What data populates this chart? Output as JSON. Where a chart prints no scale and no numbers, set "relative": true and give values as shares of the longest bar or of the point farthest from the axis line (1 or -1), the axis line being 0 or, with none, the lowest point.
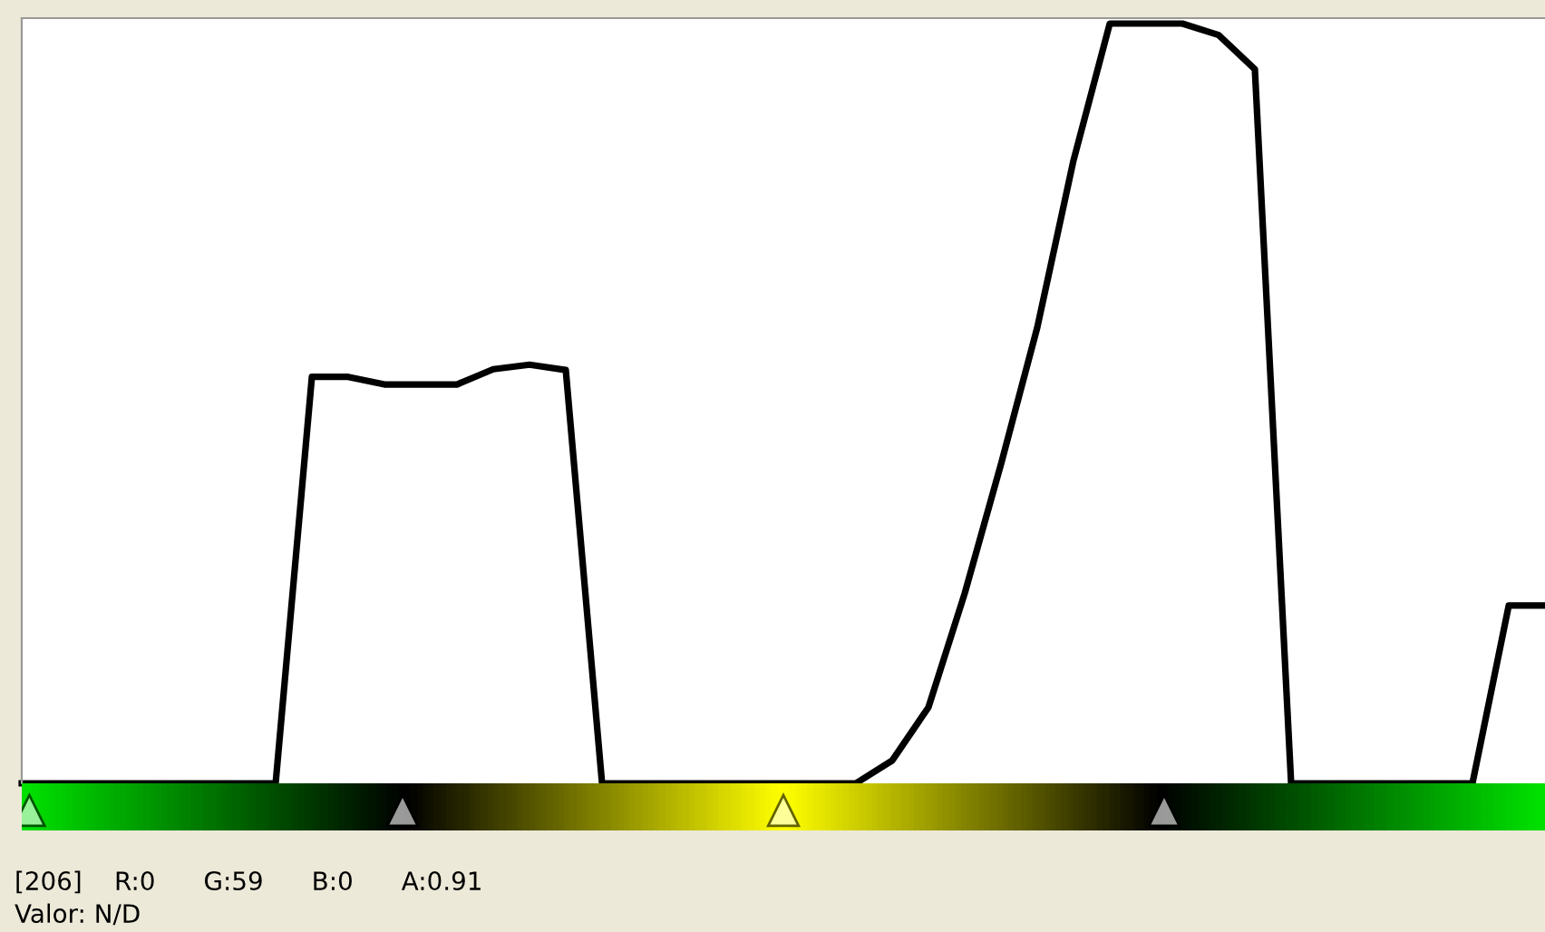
{
  "chart_data": {
    "type": "line",
    "relative": true,
    "categories": [
      null,
      null,
      null,
      null,
      null,
      null,
      null,
      null,
      null,
      null,
      null,
      null,
      null,
      null,
      null,
      null,
      null,
      null,
      null,
      null,
      null,
      null,
      null,
      null,
      null,
      null,
      null,
      null,
      null,
      null,
      null,
      null,
      null,
      null,
      null,
      null,
      null,
      null,
      null,
      null,
      null,
      null,
      null
    ],
    "series": [
      {
        "color": "#000000",
        "values": [
          0,
          0,
          0,
          0,
          0,
          0,
          0,
          0,
          0.535,
          0.535,
          0.525,
          0.525,
          0.525,
          0.545,
          0.551,
          0.544,
          0,
          0,
          0,
          0,
          0,
          0,
          0,
          0,
          0.03,
          0.1,
          0.25,
          0.42,
          0.6,
          0.82,
          1,
          1,
          1,
          0.985,
          0.94,
          0,
          0,
          0,
          0,
          0,
          0,
          0.234,
          0.234
        ]
      }
    ],
    "annotations": [
      "[206]    R:0      G:59      B:0      A:0.91",
      "Valor: N/D"
    ],
    "grid": false,
    "legend": false
  }
}
